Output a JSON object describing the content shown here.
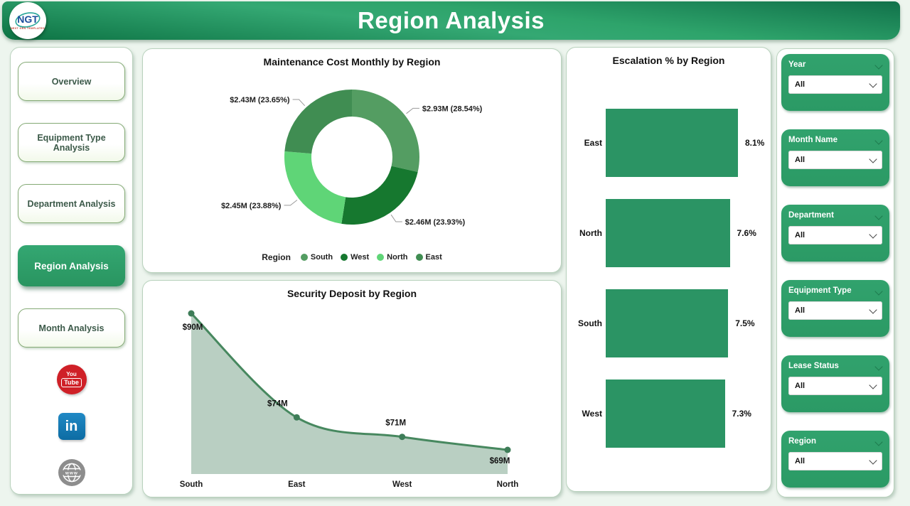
{
  "header": {
    "title": "Region Analysis",
    "logo_text": "NGT",
    "logo_tagline": "NEXT GEN TEMPLATES"
  },
  "sidebar": {
    "items": [
      {
        "label": "Overview",
        "active": false
      },
      {
        "label": "Equipment Type Analysis",
        "active": false
      },
      {
        "label": "Department Analysis",
        "active": false
      },
      {
        "label": "Region Analysis",
        "active": true
      },
      {
        "label": "Month Analysis",
        "active": false
      }
    ],
    "socials": [
      {
        "name": "youtube",
        "line1": "You",
        "line2": "Tube"
      },
      {
        "name": "linkedin",
        "text": "in"
      },
      {
        "name": "website",
        "text": "www"
      }
    ]
  },
  "filters": [
    {
      "label": "Year",
      "value": "All"
    },
    {
      "label": "Month Name",
      "value": "All"
    },
    {
      "label": "Department",
      "value": "All"
    },
    {
      "label": "Equipment Type",
      "value": "All"
    },
    {
      "label": "Lease Status",
      "value": "All"
    },
    {
      "label": "Region",
      "value": "All"
    }
  ],
  "colors": {
    "header_green_light": "#34a873",
    "header_green_dark": "#11714a",
    "active_green": "#2f9e6b",
    "bar_green": "#2b9464",
    "page_bg": "#edf5ee"
  },
  "chart_data": [
    {
      "type": "pie",
      "subtype": "donut",
      "title": "Maintenance Cost Monthly by Region",
      "legend_title": "Region",
      "legend_position": "bottom",
      "slices": [
        {
          "name": "South",
          "value": 2.93,
          "pct": 28.54,
          "value_label": "$2.93M (28.54%)",
          "color": "#549d62"
        },
        {
          "name": "West",
          "value": 2.46,
          "pct": 23.93,
          "value_label": "$2.46M (23.93%)",
          "color": "#16782f"
        },
        {
          "name": "North",
          "value": 2.45,
          "pct": 23.88,
          "value_label": "$2.45M (23.88%)",
          "color": "#5fd577"
        },
        {
          "name": "East",
          "value": 2.43,
          "pct": 23.65,
          "value_label": "$2.43M (23.65%)",
          "color": "#408d52"
        }
      ]
    },
    {
      "type": "area",
      "title": "Security Deposit by Region",
      "categories": [
        "South",
        "East",
        "West",
        "North"
      ],
      "values": [
        90,
        74,
        71,
        69
      ],
      "labels": [
        "$90M",
        "$74M",
        "$71M",
        "$69M"
      ],
      "line_color": "#47885f",
      "fill_color": "#b9cfc2",
      "marker_color": "#3e7d58"
    },
    {
      "type": "bar",
      "orientation": "horizontal",
      "title": "Escalation % by Region",
      "categories": [
        "East",
        "North",
        "South",
        "West"
      ],
      "values": [
        8.1,
        7.6,
        7.5,
        7.3
      ],
      "labels": [
        "8.1%",
        "7.6%",
        "7.5%",
        "7.3%"
      ],
      "xlim": [
        0,
        8.1
      ],
      "bar_color": "#2b9464"
    }
  ]
}
